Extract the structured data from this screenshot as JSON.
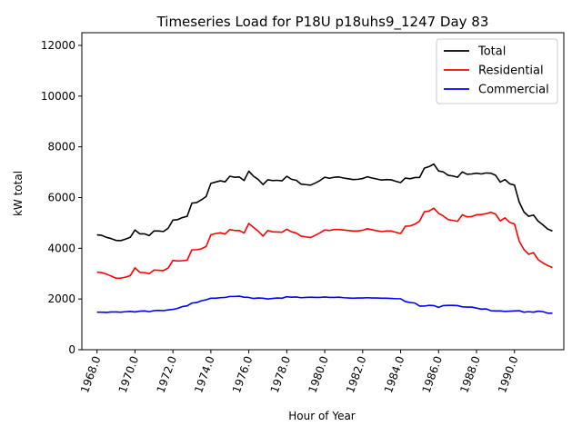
{
  "chart_data": {
    "type": "line",
    "title": "Timeseries Load for P18U p18uhs9_1247  Day 83",
    "xlabel": "Hour of Year",
    "ylabel": "kW total",
    "xlim": [
      1967.2,
      1992.6
    ],
    "ylim": [
      0,
      12500
    ],
    "x_start": 1968.0,
    "x_step": 0.25,
    "xticks": [
      1968,
      1970,
      1972,
      1974,
      1976,
      1978,
      1980,
      1982,
      1984,
      1986,
      1988,
      1990
    ],
    "xtick_labels": [
      "1968.0",
      "1970.0",
      "1972.0",
      "1974.0",
      "1976.0",
      "1978.0",
      "1980.0",
      "1982.0",
      "1984.0",
      "1986.0",
      "1988.0",
      "1990.0"
    ],
    "yticks": [
      0,
      2000,
      4000,
      6000,
      8000,
      10000,
      12000
    ],
    "ytick_labels": [
      "0",
      "2000",
      "4000",
      "6000",
      "8000",
      "10000",
      "12000"
    ],
    "legend_position": "top-right",
    "series": [
      {
        "name": "Total",
        "color": "#000000",
        "values": [
          4530,
          4510,
          4430,
          4380,
          4310,
          4300,
          4360,
          4430,
          4720,
          4570,
          4570,
          4500,
          4680,
          4680,
          4660,
          4790,
          5110,
          5130,
          5210,
          5260,
          5780,
          5800,
          5910,
          6040,
          6560,
          6610,
          6660,
          6620,
          6840,
          6800,
          6810,
          6670,
          7040,
          6840,
          6710,
          6510,
          6700,
          6670,
          6680,
          6660,
          6840,
          6720,
          6680,
          6530,
          6510,
          6490,
          6570,
          6670,
          6800,
          6760,
          6800,
          6810,
          6770,
          6740,
          6710,
          6720,
          6750,
          6820,
          6770,
          6730,
          6690,
          6710,
          6700,
          6640,
          6590,
          6770,
          6740,
          6790,
          6790,
          7160,
          7220,
          7320,
          7050,
          7010,
          6880,
          6850,
          6800,
          7010,
          6920,
          6930,
          6960,
          6930,
          6970,
          6960,
          6880,
          6610,
          6710,
          6540,
          6490,
          5820,
          5430,
          5260,
          5310,
          5070,
          4920,
          4760,
          4680
        ]
      },
      {
        "name": "Residential",
        "color": "#ff0000",
        "values": [
          3060,
          3040,
          2980,
          2900,
          2820,
          2820,
          2860,
          2920,
          3230,
          3050,
          3040,
          3000,
          3140,
          3130,
          3120,
          3220,
          3520,
          3500,
          3510,
          3530,
          3940,
          3940,
          3980,
          4070,
          4530,
          4580,
          4610,
          4560,
          4740,
          4700,
          4700,
          4600,
          4980,
          4820,
          4670,
          4480,
          4700,
          4650,
          4640,
          4630,
          4750,
          4650,
          4600,
          4480,
          4450,
          4420,
          4510,
          4610,
          4720,
          4700,
          4740,
          4740,
          4720,
          4700,
          4680,
          4680,
          4710,
          4770,
          4730,
          4690,
          4660,
          4680,
          4680,
          4630,
          4580,
          4870,
          4880,
          4950,
          5070,
          5440,
          5470,
          5580,
          5380,
          5270,
          5130,
          5100,
          5060,
          5320,
          5240,
          5250,
          5320,
          5330,
          5360,
          5420,
          5350,
          5080,
          5200,
          5020,
          4960,
          4280,
          3950,
          3760,
          3830,
          3550,
          3420,
          3320,
          3240
        ]
      },
      {
        "name": "Commercial",
        "color": "#0000ff",
        "values": [
          1480,
          1480,
          1470,
          1490,
          1490,
          1480,
          1500,
          1510,
          1490,
          1520,
          1530,
          1500,
          1540,
          1550,
          1540,
          1570,
          1590,
          1630,
          1700,
          1730,
          1840,
          1860,
          1930,
          1970,
          2030,
          2030,
          2050,
          2060,
          2100,
          2100,
          2110,
          2070,
          2060,
          2020,
          2040,
          2030,
          2000,
          2020,
          2040,
          2030,
          2090,
          2070,
          2080,
          2050,
          2060,
          2070,
          2060,
          2060,
          2080,
          2060,
          2060,
          2070,
          2050,
          2040,
          2030,
          2040,
          2040,
          2050,
          2040,
          2040,
          2030,
          2030,
          2020,
          2010,
          2010,
          1900,
          1860,
          1840,
          1720,
          1720,
          1750,
          1740,
          1670,
          1740,
          1750,
          1750,
          1740,
          1690,
          1680,
          1680,
          1640,
          1600,
          1610,
          1540,
          1530,
          1530,
          1510,
          1520,
          1530,
          1540,
          1480,
          1500,
          1480,
          1520,
          1500,
          1440,
          1440
        ]
      }
    ]
  }
}
